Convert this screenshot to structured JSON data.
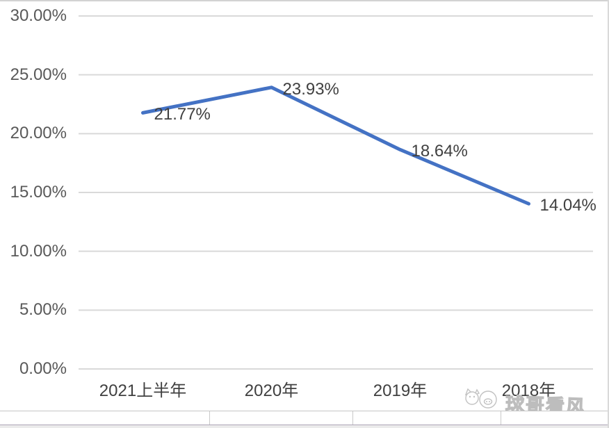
{
  "chart_data": {
    "type": "line",
    "title": "",
    "categories": [
      "2021上半年",
      "2020年",
      "2019年",
      "2018年"
    ],
    "values": [
      21.77,
      23.93,
      18.64,
      14.04
    ],
    "data_labels": [
      "21.77%",
      "23.93%",
      "18.64%",
      "14.04%"
    ],
    "y_tick_labels": [
      "30.00%",
      "25.00%",
      "20.00%",
      "15.00%",
      "10.00%",
      "5.00%",
      "0.00%"
    ],
    "y_tick_values": [
      30,
      25,
      20,
      15,
      10,
      5,
      0
    ],
    "ylim": [
      0,
      30
    ],
    "xlabel": "",
    "ylabel": "",
    "grid": true,
    "legend": "none"
  },
  "watermark": {
    "text": "球哥看风",
    "icon": "mascot-face-logo"
  },
  "colors": {
    "line": "#4472C4",
    "gridline": "#D9D9D9",
    "y_tick_label": "#595959",
    "x_label": "#404040",
    "data_label": "#404040",
    "watermark": "#BDBDBD",
    "border": "#D2D2D2"
  }
}
